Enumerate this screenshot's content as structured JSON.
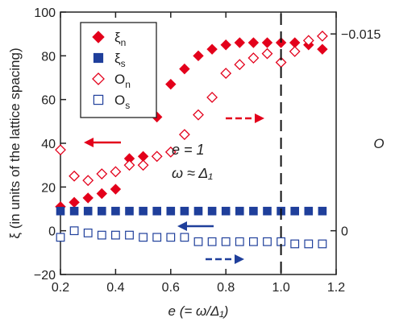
{
  "chart_data": {
    "type": "scatter",
    "title": "",
    "xlabel": "e (= ω/Δ₁)",
    "ylabel": "ξ (in units of the lattice spacing)",
    "y2label": "O",
    "xlim": [
      0.2,
      1.2
    ],
    "ylim": [
      -20,
      100
    ],
    "x_ticks": [
      "0.2",
      "0.4",
      "0.6",
      "0.8",
      "1.0",
      "1.2"
    ],
    "y_ticks": [
      "−20",
      "0",
      "20",
      "40",
      "60",
      "80",
      "100"
    ],
    "y2_ticks": [
      "0",
      "−0.015"
    ],
    "annotations": {
      "e_equals": "e = 1",
      "omega_approx": "ω ≈ Δ₁"
    },
    "vertical_line_x": 1.0,
    "legend": {
      "placement": "top-left",
      "entries": [
        {
          "main": "ξ",
          "sub": "n"
        },
        {
          "main": "ξ",
          "sub": "s"
        },
        {
          "main": "O",
          "sub": "n"
        },
        {
          "main": "O",
          "sub": "s"
        }
      ]
    },
    "series": [
      {
        "key": "xi_n",
        "marker": "diamond",
        "filled": true,
        "color": "#e3001b",
        "x": [
          0.2,
          0.25,
          0.3,
          0.35,
          0.4,
          0.45,
          0.5,
          0.55,
          0.6,
          0.65,
          0.7,
          0.75,
          0.8,
          0.85,
          0.9,
          0.95,
          1.0,
          1.05,
          1.1,
          1.15
        ],
        "y": [
          11,
          13,
          15,
          17,
          19,
          33,
          34,
          52,
          67,
          74,
          80,
          83,
          85,
          86,
          86,
          86,
          86,
          86,
          85,
          83
        ]
      },
      {
        "key": "xi_s",
        "marker": "square",
        "filled": true,
        "color": "#1f3f9b",
        "x": [
          0.2,
          0.25,
          0.3,
          0.35,
          0.4,
          0.45,
          0.5,
          0.55,
          0.6,
          0.65,
          0.7,
          0.75,
          0.8,
          0.85,
          0.9,
          0.95,
          1.0,
          1.05,
          1.1,
          1.15
        ],
        "y": [
          9,
          9,
          9,
          9,
          9,
          9,
          9,
          9,
          9,
          9,
          9,
          9,
          9,
          9,
          9,
          9,
          9,
          9,
          9,
          9
        ]
      },
      {
        "key": "O_n",
        "marker": "diamond",
        "filled": false,
        "color": "#e3001b",
        "x": [
          0.2,
          0.25,
          0.3,
          0.35,
          0.4,
          0.45,
          0.5,
          0.55,
          0.6,
          0.65,
          0.7,
          0.75,
          0.8,
          0.85,
          0.9,
          0.95,
          1.0,
          1.05,
          1.1,
          1.15
        ],
        "y": [
          37,
          25,
          23,
          26,
          27,
          30,
          30,
          34,
          36,
          44,
          53,
          61,
          72,
          76,
          79,
          81,
          77,
          82,
          87,
          89
        ]
      },
      {
        "key": "O_s",
        "marker": "square",
        "filled": false,
        "color": "#1f3f9b",
        "x": [
          0.2,
          0.25,
          0.3,
          0.35,
          0.4,
          0.45,
          0.5,
          0.55,
          0.6,
          0.65,
          0.7,
          0.75,
          0.8,
          0.85,
          0.9,
          0.95,
          1.0,
          1.05,
          1.1,
          1.15
        ],
        "y": [
          -3,
          0,
          -1,
          -2,
          -2,
          -2,
          -3,
          -3,
          -3,
          -3,
          -5,
          -5,
          -5,
          -5,
          -5,
          -5,
          -5,
          -6,
          -6,
          -6
        ]
      }
    ]
  }
}
